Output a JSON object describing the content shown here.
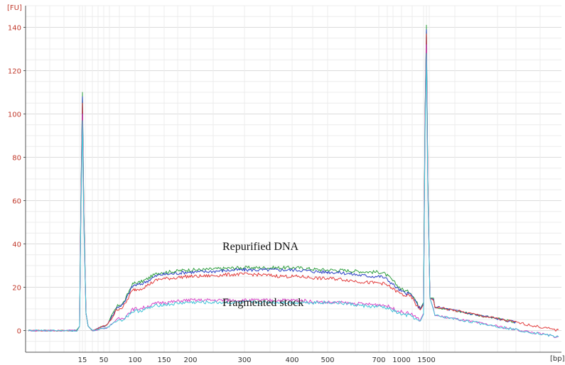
{
  "chart_data": {
    "type": "line",
    "y_unit": "[FU]",
    "x_unit": "[bp]",
    "ylim": [
      -10,
      150
    ],
    "y_ticks": [
      0,
      20,
      40,
      60,
      80,
      100,
      120,
      140
    ],
    "x_ticks": [
      "15",
      "50",
      "100",
      "150",
      "200",
      "300",
      "400",
      "500",
      "700",
      "1000",
      "1500"
    ],
    "grid": true,
    "annotations": [
      "Repurified DNA",
      "Fragmented stock"
    ],
    "colors": {
      "green": "#2e9e3e",
      "blue": "#2a3fc4",
      "red": "#e23c3c",
      "magenta": "#d946c8",
      "cyan": "#3cc4d6"
    },
    "series": [
      {
        "color": "green",
        "peak_15": 110,
        "peak_1500": 141,
        "x": [
          "15",
          "50",
          "100",
          "150",
          "200",
          "300",
          "400",
          "500",
          "700",
          "1000",
          "1500"
        ],
        "plateau_values": [
          0,
          2,
          22,
          27,
          28,
          29,
          29,
          28,
          27,
          18,
          2
        ]
      },
      {
        "color": "blue",
        "peak_15": 108,
        "peak_1500": 139,
        "plateau_values": [
          0,
          2,
          21,
          26,
          27,
          28,
          28,
          27,
          25,
          17,
          2
        ]
      },
      {
        "color": "red",
        "peak_15": 105,
        "peak_1500": 137,
        "plateau_values": [
          0,
          2,
          19,
          24,
          25,
          26,
          25,
          24,
          22,
          16,
          1
        ]
      },
      {
        "color": "magenta",
        "peak_15": 100,
        "peak_1500": 132,
        "plateau_values": [
          0,
          1,
          10,
          13,
          14,
          14,
          14,
          13,
          12,
          8,
          0
        ]
      },
      {
        "color": "cyan",
        "peak_15": 97,
        "peak_1500": 128,
        "plateau_values": [
          0,
          1,
          9,
          12,
          13,
          13,
          13,
          13,
          11,
          7,
          -1
        ]
      }
    ]
  }
}
